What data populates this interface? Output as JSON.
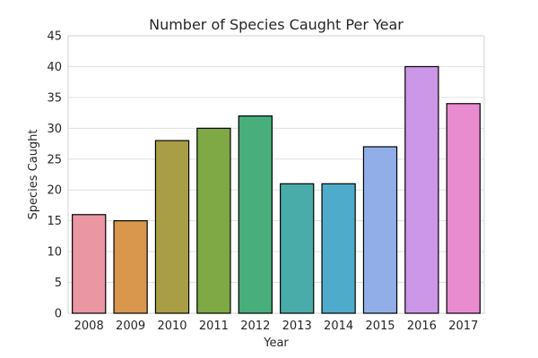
{
  "chart_data": {
    "type": "bar",
    "title": "Number of Species Caught Per Year",
    "xlabel": "Year",
    "ylabel": "Species Caught",
    "categories": [
      "2008",
      "2009",
      "2010",
      "2011",
      "2012",
      "2013",
      "2014",
      "2015",
      "2016",
      "2017"
    ],
    "values": [
      16,
      15,
      28,
      30,
      32,
      21,
      21,
      27,
      40,
      34
    ],
    "colors": [
      "#ea96a3",
      "#d8974c",
      "#a99e45",
      "#7fa945",
      "#48ae7c",
      "#4aaca8",
      "#4eacca",
      "#91aee8",
      "#cd97e8",
      "#e98ccf"
    ],
    "ylim": [
      0,
      45
    ],
    "yticks": [
      "0",
      "5",
      "10",
      "15",
      "20",
      "25",
      "30",
      "35",
      "40",
      "45"
    ],
    "grid": true,
    "legend": "none"
  }
}
